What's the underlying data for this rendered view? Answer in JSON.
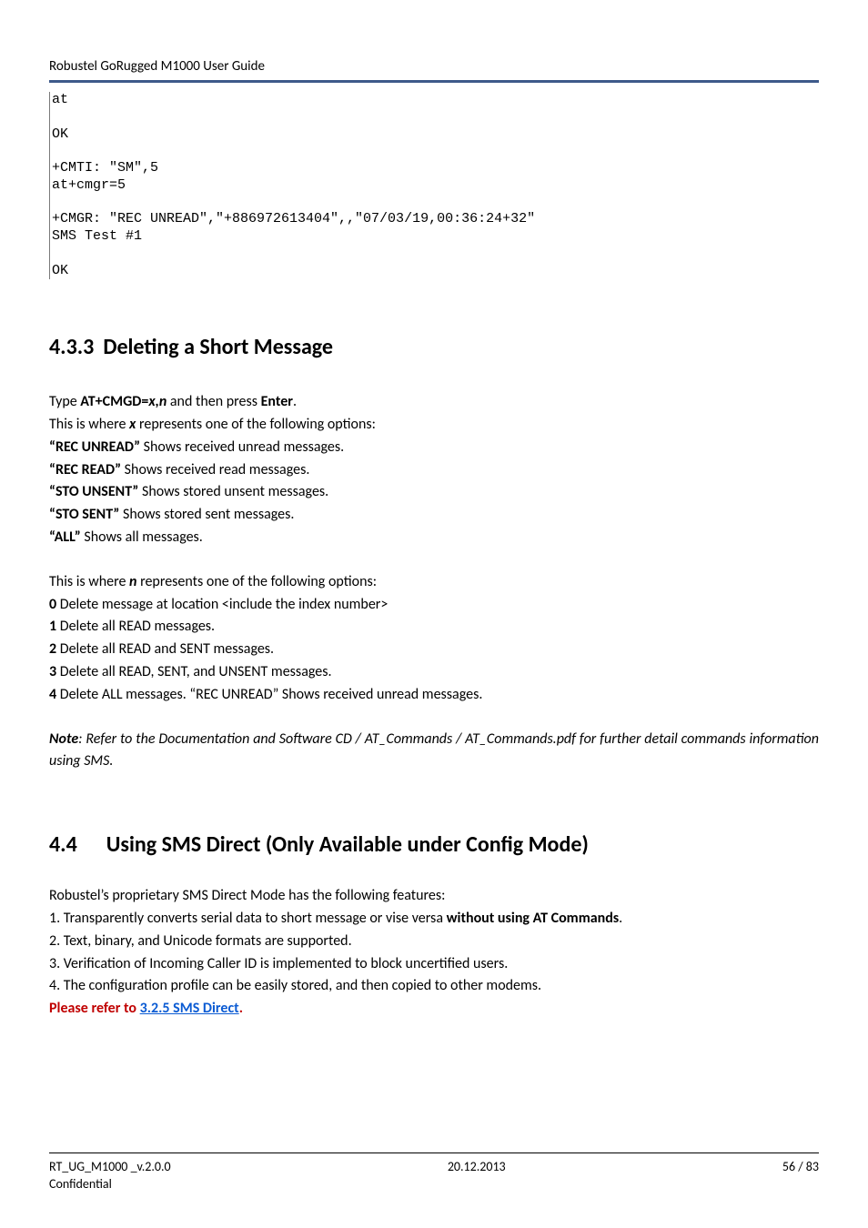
{
  "header": {
    "title": "Robustel GoRugged M1000 User Guide",
    "rule_color": "#3d5a8a"
  },
  "terminal": {
    "lines": [
      "at",
      "",
      "OK",
      "",
      "+CMTI: \"SM\",5",
      "at+cmgr=5",
      "",
      "+CMGR: \"REC UNREAD\",\"+886972613404\",,\"07/03/19,00:36:24+32\"",
      "SMS Test #1",
      "",
      "OK"
    ],
    "font_family": "Courier New",
    "border_color": "#7a7a7a"
  },
  "section_433": {
    "number": "4.3.3",
    "title": "Deleting a Short Message",
    "type_prefix": "Type ",
    "cmd": "AT+CMGD=",
    "cmd_arg": "x,n",
    "type_suffix": " and then press ",
    "enter": "Enter",
    "period": ".",
    "x_intro_pre": "This is where ",
    "x_var": "x",
    "x_intro_post": " represents one of the following options:",
    "x_options": [
      {
        "label": "“REC UNREAD”",
        "desc": " Shows received unread messages."
      },
      {
        "label": "“REC READ”",
        "desc": " Shows received read messages."
      },
      {
        "label": "“STO UNSENT”",
        "desc": " Shows stored unsent messages."
      },
      {
        "label": "“STO SENT”",
        "desc": " Shows stored sent messages."
      },
      {
        "label": "“ALL”",
        "desc": " Shows all messages."
      }
    ],
    "n_intro_pre": "This is where ",
    "n_var": "n",
    "n_intro_post": " represents one of the following options:",
    "n_options": [
      {
        "label": "0",
        "desc": " Delete message at location <include the index number>"
      },
      {
        "label": "1",
        "desc": " Delete all READ messages."
      },
      {
        "label": "2",
        "desc": " Delete all READ and SENT messages."
      },
      {
        "label": "3",
        "desc": " Delete all READ, SENT, and UNSENT messages."
      },
      {
        "label": "4",
        "desc": " Delete ALL messages. “REC UNREAD” Shows received unread messages."
      }
    ],
    "note_label": "Note",
    "note_body": ": Refer to the Documentation and Software CD / AT_Commands / AT_Commands.pdf for further detail commands information using SMS."
  },
  "section_44": {
    "number": "4.4",
    "title": "Using SMS Direct (Only Available under Config Mode)",
    "intro": "Robustel’s proprietary SMS Direct Mode has the following features:",
    "feat1_pre": "1. Transparently converts serial data to short message or vise versa ",
    "feat1_bold": "without using AT Commands",
    "feat1_post": ".",
    "feat2": "2. Text, binary, and Unicode formats are supported.",
    "feat3": "3. Verification of Incoming Caller ID is implemented to block uncertified users.",
    "feat4": "4. The configuration profile can be easily stored, and then copied to other modems.",
    "ref_pre": "Please refer to ",
    "ref_link": "3.2.5 SMS Direct",
    "ref_post": "."
  },
  "footer": {
    "left": "RT_UG_M1000 _v.2.0.0",
    "center": "20.12.2013",
    "right": "56 / 83",
    "conf": "Confidential"
  },
  "colors": {
    "link": "#0b5bd3",
    "red": "#c00000",
    "text": "#000000",
    "bg": "#ffffff"
  },
  "typography": {
    "body_fontsize": 16,
    "heading_fontsize": 24,
    "header_fontsize": 15,
    "footer_fontsize": 14,
    "terminal_fontsize": 15
  }
}
